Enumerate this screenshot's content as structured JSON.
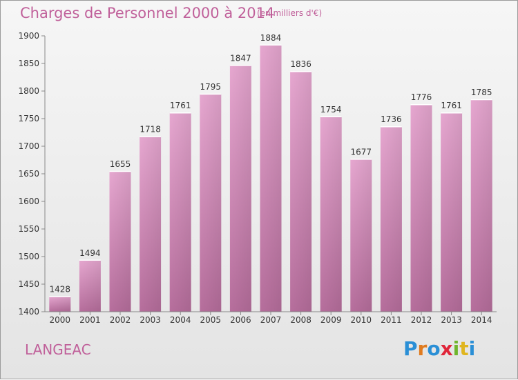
{
  "header": {
    "title": "Charges de Personnel 2000 à 2014",
    "unit_note": "(en milliers d'€)"
  },
  "footer": {
    "commune": "LANGEAC",
    "brand_letters": [
      {
        "ch": "P",
        "color": "#2a8fd6"
      },
      {
        "ch": "r",
        "color": "#e07b1f"
      },
      {
        "ch": "o",
        "color": "#2a8fd6"
      },
      {
        "ch": "x",
        "color": "#e0263a"
      },
      {
        "ch": "i",
        "color": "#6fb52c"
      },
      {
        "ch": "t",
        "color": "#e0b51f"
      },
      {
        "ch": "i",
        "color": "#2a8fd6"
      }
    ]
  },
  "chart_data": {
    "type": "bar",
    "categories": [
      "2000",
      "2001",
      "2002",
      "2003",
      "2004",
      "2005",
      "2006",
      "2007",
      "2008",
      "2009",
      "2010",
      "2011",
      "2012",
      "2013",
      "2014"
    ],
    "values": [
      1428,
      1494,
      1655,
      1718,
      1761,
      1795,
      1847,
      1884,
      1836,
      1754,
      1677,
      1736,
      1776,
      1761,
      1785
    ],
    "data_labels": [
      "1428",
      "1494",
      "1655",
      "1718",
      "1761",
      "1795",
      "1847",
      "1884",
      "1836",
      "1754",
      "1677",
      "1736",
      "1776",
      "1761",
      "1785"
    ],
    "ylim": [
      1400,
      1900
    ],
    "yticks": [
      1400,
      1450,
      1500,
      1550,
      1600,
      1650,
      1700,
      1750,
      1800,
      1850,
      1900
    ],
    "grid": false,
    "bar_color": "#d98fbf"
  }
}
